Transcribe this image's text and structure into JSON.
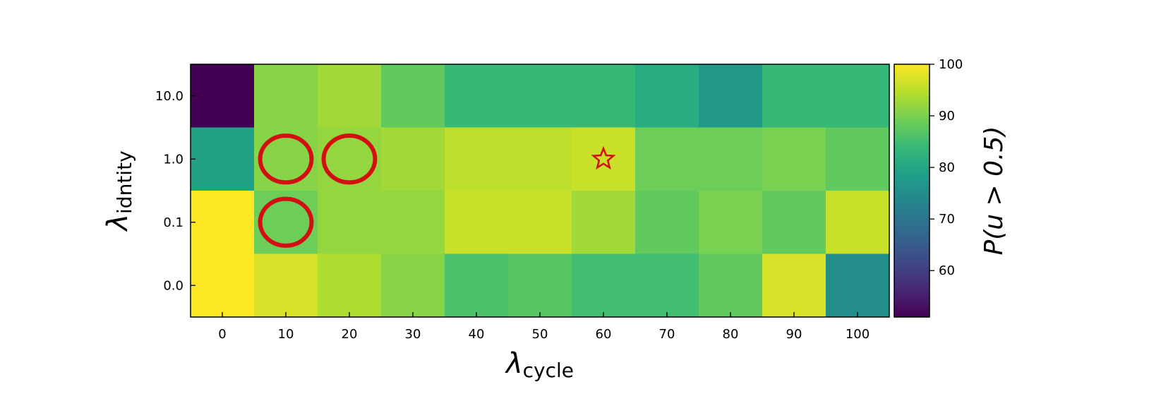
{
  "chart_data": {
    "type": "heatmap",
    "title": "",
    "xlabel": {
      "base": "λ",
      "sub": "cycle"
    },
    "ylabel": {
      "base": "λ",
      "sub": "idntity"
    },
    "x_categories": [
      "0",
      "10",
      "20",
      "30",
      "40",
      "50",
      "60",
      "70",
      "80",
      "90",
      "100"
    ],
    "y_categories": [
      "10.0",
      "1.0",
      "0.1",
      "0.0"
    ],
    "values": [
      [
        51,
        91,
        93,
        88,
        84,
        84,
        84,
        81,
        77,
        84,
        84
      ],
      [
        79,
        91,
        92,
        93,
        95,
        95,
        96,
        89,
        89,
        90,
        88
      ],
      [
        100,
        89,
        92,
        92,
        96,
        96,
        93,
        88,
        90,
        88,
        96
      ],
      [
        100,
        97,
        94,
        91,
        86,
        87,
        85,
        85,
        88,
        97,
        75
      ]
    ],
    "colorbar": {
      "label": "P(u > 0.5)",
      "range": [
        51,
        100
      ],
      "ticks": [
        "60",
        "70",
        "80",
        "90",
        "100"
      ],
      "tick_values": [
        60,
        70,
        80,
        90,
        100
      ],
      "colormap": "viridis"
    },
    "annotations": [
      {
        "type": "circle",
        "x": "10",
        "y": "1.0",
        "color": "#d40f14"
      },
      {
        "type": "circle",
        "x": "20",
        "y": "1.0",
        "color": "#d40f14"
      },
      {
        "type": "circle",
        "x": "10",
        "y": "0.1",
        "color": "#d40f14"
      },
      {
        "type": "star",
        "x": "60",
        "y": "1.0",
        "color": "#d40f14"
      }
    ]
  }
}
